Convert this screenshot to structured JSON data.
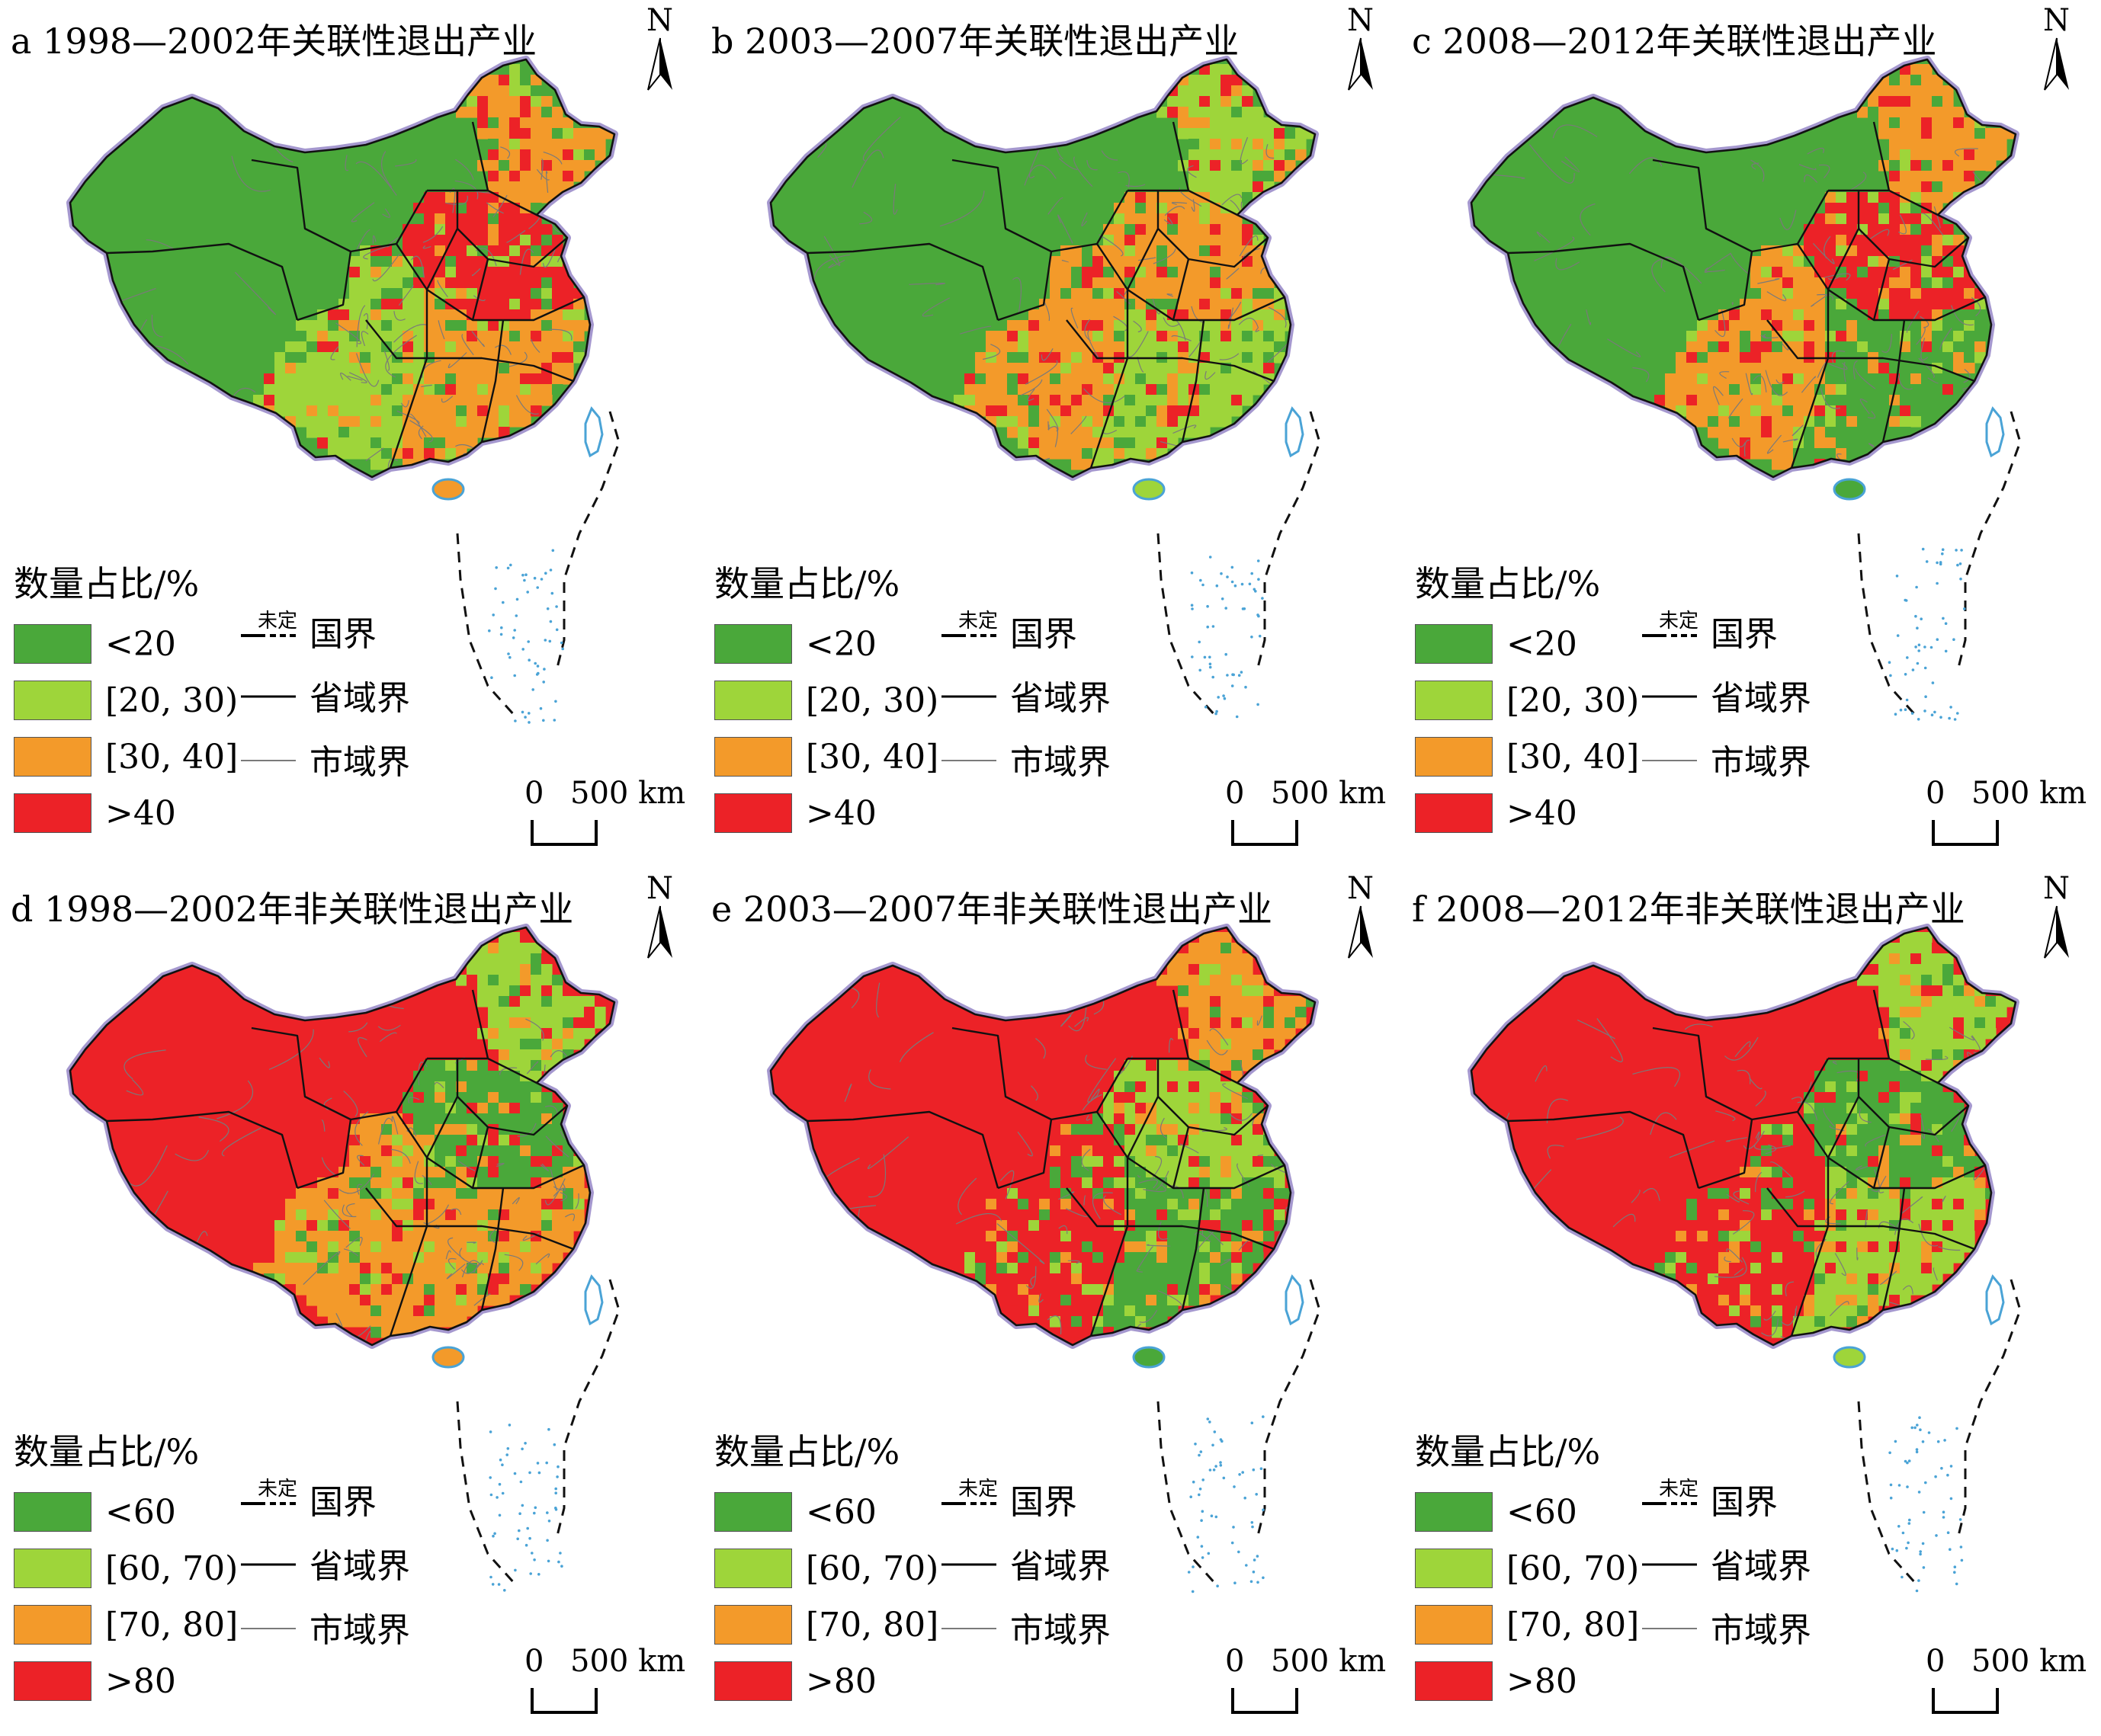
{
  "colors": {
    "dark_green": "#4aa83a",
    "light_green": "#9ed53a",
    "orange": "#f39a2a",
    "red": "#ec2227",
    "province_line": "#111111",
    "city_line": "#7a7a7a",
    "border_shadow": "#a598cf",
    "island_blue": "#4aa3d6"
  },
  "legend_common": {
    "title": "数量占比/%",
    "undetermined_label": "未定",
    "national_border": "国界",
    "province_border": "省域界",
    "city_border": "市域界",
    "north": "N",
    "scale_zero": "0",
    "scale_distance": "500 km"
  },
  "legends": {
    "related": [
      "<20",
      "[20, 30)",
      "[30, 40]",
      ">40"
    ],
    "unrelated": [
      "<60",
      "[60, 70)",
      "[70, 80]",
      ">80"
    ]
  },
  "panels": [
    {
      "id": "a",
      "title": "a 1998—2002年关联性退出产业",
      "legend": "related",
      "dominant_class": "<20",
      "regions": {
        "xinjiang": "<20",
        "xinjiang_north": "[20, 30)",
        "xinjiang_sw": "[30, 40]",
        "tibet": "<20",
        "qinghai": "[20, 30)",
        "inner_mongolia": "[30, 40]",
        "northeast": "[30, 40]",
        "east": ">40",
        "south": "[30, 40]",
        "southwest": "[20, 30)"
      }
    },
    {
      "id": "b",
      "title": "b 2003—2007年关联性退出产业",
      "legend": "related",
      "dominant_class": "<20",
      "regions": {
        "xinjiang": "<20",
        "xinjiang_north": "[20, 30)",
        "xinjiang_sw": "<20",
        "tibet": "<20",
        "qinghai": "<20",
        "inner_mongolia": "<20",
        "northeast": "[20, 30)",
        "east": "[30, 40]",
        "south": "[20, 30)",
        "southwest": "[30, 40]"
      }
    },
    {
      "id": "c",
      "title": "c 2008—2012年关联性退出产业",
      "legend": "related",
      "dominant_class": "<20",
      "regions": {
        "xinjiang": "[20, 30)",
        "xinjiang_north": "<20",
        "xinjiang_sw": "[30, 40]",
        "tibet": "<20",
        "qinghai": "<20",
        "inner_mongolia": ">40",
        "northeast": "[30, 40]",
        "east": ">40",
        "south": "<20",
        "southwest": "[30, 40]"
      }
    },
    {
      "id": "d",
      "title": "d 1998—2002年非关联性退出产业",
      "legend": "unrelated",
      "dominant_class": ">80",
      "regions": {
        "xinjiang": "[60, 70)",
        "xinjiang_north": "[60, 70)",
        "xinjiang_sw": ">80",
        "tibet": ">80",
        "qinghai": ">80",
        "inner_mongolia": ">80",
        "northeast": "[60, 70)",
        "east": "<60",
        "south": "[70, 80]",
        "southwest": "[70, 80]"
      }
    },
    {
      "id": "e",
      "title": "e 2003—2007年非关联性退出产业",
      "legend": "unrelated",
      "dominant_class": ">80",
      "regions": {
        "xinjiang": ">80",
        "xinjiang_north": ">80",
        "xinjiang_sw": ">80",
        "tibet": ">80",
        "qinghai": ">80",
        "inner_mongolia": ">80",
        "northeast": "[70, 80]",
        "east": "[60, 70)",
        "south": "<60",
        "southwest": ">80"
      }
    },
    {
      "id": "f",
      "title": "f 2008—2012年非关联性退出产业",
      "legend": "unrelated",
      "dominant_class": ">80",
      "regions": {
        "xinjiang": "[70, 80]",
        "xinjiang_north": "[60, 70)",
        "xinjiang_sw": ">80",
        "tibet": ">80",
        "qinghai": ">80",
        "inner_mongolia": "<60",
        "northeast": "[60, 70)",
        "east": "<60",
        "south": "[60, 70)",
        "southwest": ">80"
      }
    }
  ]
}
